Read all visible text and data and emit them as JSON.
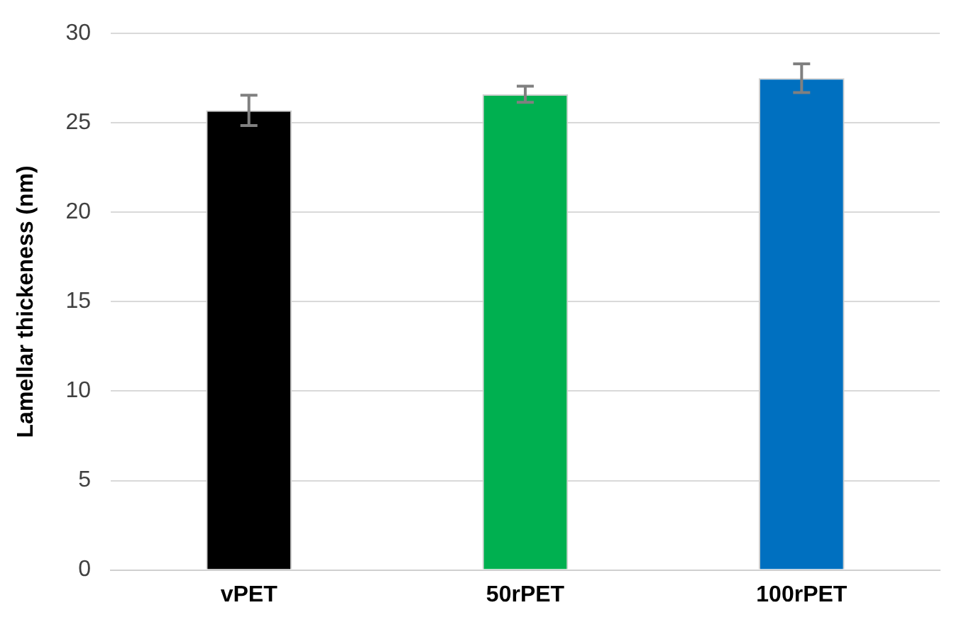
{
  "chart_data": {
    "type": "bar",
    "ylabel": "Lamellar thickeness (nm)",
    "categories": [
      "vPET",
      "50rPET",
      "100rPET"
    ],
    "values": [
      25.7,
      26.6,
      27.5
    ],
    "errors": [
      0.85,
      0.45,
      0.8
    ],
    "colors": [
      "#000000",
      "#00b050",
      "#0070c0"
    ],
    "ylim": [
      0,
      30
    ],
    "yticks": [
      0,
      5,
      10,
      15,
      20,
      25,
      30
    ],
    "grid": "y",
    "legend": false
  }
}
